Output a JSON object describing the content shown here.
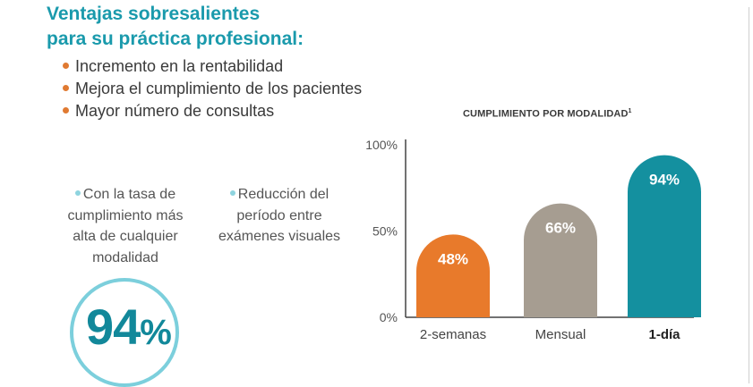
{
  "heading": {
    "line1": "Ventajas sobresalientes",
    "line2": "para su práctica profesional:"
  },
  "benefits": [
    "Incremento en la rentabilidad",
    "Mejora el cumplimiento de los pacientes",
    "Mayor número de consultas"
  ],
  "stats": [
    {
      "lines": [
        "Con la tasa de",
        "cumplimiento más",
        "alta de cualquier",
        "modalidad"
      ]
    },
    {
      "lines": [
        "Reducción del",
        "período entre",
        "exámenes visuales"
      ]
    }
  ],
  "big_stat": {
    "number": "94",
    "unit": "%"
  },
  "colors": {
    "heading": "#1a9aac",
    "bullet_orange": "#e07a32",
    "stat_bullet": "#8ed4df",
    "ring": "#7ccfdc",
    "big_number": "#12889a"
  },
  "chart_data": {
    "type": "bar",
    "title": "CUMPLIMIENTO POR MODALIDAD",
    "title_superscript": "1",
    "categories": [
      "2-semanas",
      "Mensual",
      "1-día"
    ],
    "values": [
      48,
      66,
      94
    ],
    "value_labels": [
      "48%",
      "66%",
      "94%"
    ],
    "bar_colors": [
      "#e87a2b",
      "#a69d91",
      "#14909f"
    ],
    "highlight_category": "1-día",
    "y_ticks": [
      {
        "value": 0,
        "label": "0%"
      },
      {
        "value": 50,
        "label": "50%"
      },
      {
        "value": 100,
        "label": "100%"
      }
    ],
    "ylim": [
      0,
      100
    ],
    "xlabel": "",
    "ylabel": "",
    "grid": false,
    "legend": "none"
  }
}
